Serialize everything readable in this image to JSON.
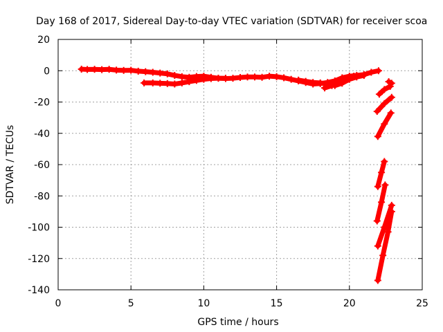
{
  "chart_data": {
    "type": "line",
    "title": "Day 168 of 2017, Sidereal Day-to-day VTEC variation (SDTVAR) for receiver scoa",
    "xlabel": "GPS time / hours",
    "ylabel": "SDTVAR / TECUs",
    "xlim": [
      0,
      25
    ],
    "ylim": [
      -140,
      20
    ],
    "xticks": [
      0,
      5,
      10,
      15,
      20,
      25
    ],
    "yticks": [
      -140,
      -120,
      -100,
      -80,
      -60,
      -40,
      -20,
      0,
      20
    ],
    "grid": true,
    "legend": "none",
    "series_color": "#ff0000",
    "series": [
      {
        "values": [
          [
            1.6,
            1.0
          ],
          [
            2.0,
            0.8
          ],
          [
            2.5,
            0.9
          ],
          [
            3.0,
            0.7
          ],
          [
            3.5,
            0.9
          ],
          [
            4.0,
            0.4
          ],
          [
            4.5,
            0.2
          ],
          [
            5.0,
            0.3
          ],
          [
            5.5,
            -0.3
          ],
          [
            6.0,
            -0.6
          ],
          [
            6.5,
            -1.0
          ],
          [
            7.0,
            -1.5
          ],
          [
            7.5,
            -2.0
          ],
          [
            8.0,
            -3.0
          ],
          [
            8.5,
            -3.8
          ],
          [
            9.0,
            -4.2
          ],
          [
            9.5,
            -3.7
          ],
          [
            10.0,
            -3.5
          ],
          [
            10.5,
            -4.2
          ],
          [
            11.0,
            -4.8
          ],
          [
            11.5,
            -5.0
          ],
          [
            12.0,
            -4.8
          ],
          [
            12.5,
            -4.3
          ],
          [
            13.0,
            -4.0
          ],
          [
            13.5,
            -4.0
          ],
          [
            14.0,
            -4.2
          ],
          [
            14.5,
            -3.5
          ],
          [
            15.0,
            -3.8
          ],
          [
            15.5,
            -4.5
          ],
          [
            16.0,
            -5.5
          ],
          [
            16.5,
            -6.5
          ],
          [
            17.0,
            -7.5
          ],
          [
            17.5,
            -8.5
          ],
          [
            18.0,
            -8.2
          ],
          [
            18.5,
            -7.5
          ],
          [
            19.0,
            -6.5
          ],
          [
            19.5,
            -4.5
          ],
          [
            20.0,
            -3.5
          ],
          [
            20.5,
            -3.0
          ],
          [
            21.0,
            -2.5
          ],
          [
            21.5,
            -1.0
          ],
          [
            22.0,
            0.0
          ]
        ]
      },
      {
        "values": [
          [
            5.9,
            -7.8
          ],
          [
            6.5,
            -7.8
          ],
          [
            7.0,
            -8.0
          ],
          [
            7.5,
            -8.2
          ],
          [
            8.0,
            -8.5
          ],
          [
            8.5,
            -7.8
          ],
          [
            9.0,
            -7.0
          ],
          [
            9.5,
            -6.2
          ],
          [
            10.0,
            -5.5
          ],
          [
            10.5,
            -5.0
          ],
          [
            11.0,
            -4.8
          ],
          [
            11.5,
            -4.8
          ]
        ]
      },
      {
        "values": [
          [
            16.5,
            -6.0
          ],
          [
            17.0,
            -6.8
          ],
          [
            17.5,
            -7.5
          ],
          [
            18.0,
            -7.8
          ],
          [
            18.5,
            -8.5
          ],
          [
            19.0,
            -9.5
          ],
          [
            19.5,
            -8.0
          ],
          [
            20.0,
            -5.5
          ],
          [
            20.5,
            -4.0
          ],
          [
            21.0,
            -3.0
          ]
        ]
      },
      {
        "values": [
          [
            18.3,
            -11.0
          ],
          [
            18.8,
            -9.5
          ],
          [
            19.3,
            -7.5
          ],
          [
            19.8,
            -5.0
          ],
          [
            20.3,
            -3.5
          ]
        ]
      },
      {
        "values": [
          [
            22.7,
            -7.0
          ],
          [
            22.9,
            -8.0
          ]
        ]
      },
      {
        "values": [
          [
            22.05,
            -15.0
          ],
          [
            22.4,
            -12.0
          ],
          [
            22.8,
            -10.0
          ]
        ]
      },
      {
        "values": [
          [
            21.9,
            -26.0
          ],
          [
            22.4,
            -21.0
          ],
          [
            22.9,
            -17.0
          ]
        ]
      },
      {
        "values": [
          [
            21.95,
            -42.0
          ],
          [
            22.4,
            -34.0
          ],
          [
            22.85,
            -27.0
          ]
        ]
      },
      {
        "values": [
          [
            21.95,
            -74.0
          ],
          [
            22.2,
            -65.0
          ],
          [
            22.4,
            -58.0
          ]
        ]
      },
      {
        "values": [
          [
            21.9,
            -96.0
          ],
          [
            22.2,
            -84.0
          ],
          [
            22.45,
            -73.0
          ]
        ]
      },
      {
        "values": [
          [
            21.95,
            -112.0
          ],
          [
            22.4,
            -100.0
          ],
          [
            22.9,
            -86.0
          ]
        ]
      },
      {
        "values": [
          [
            21.95,
            -134.0
          ],
          [
            22.3,
            -118.0
          ],
          [
            22.65,
            -103.0
          ],
          [
            22.9,
            -90.0
          ]
        ]
      }
    ]
  }
}
